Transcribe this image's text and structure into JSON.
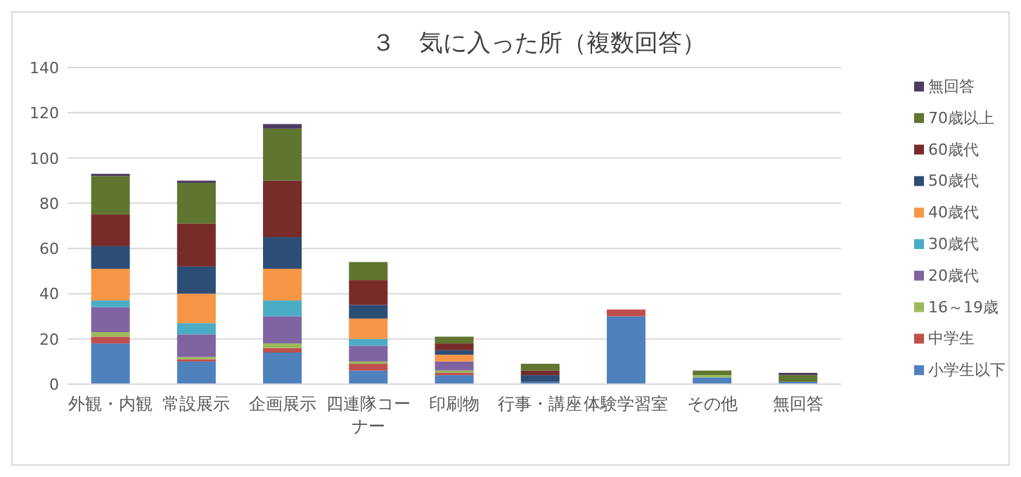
{
  "chart_data": {
    "type": "bar",
    "title": "３　気に入った所（複数回答）",
    "stacked": true,
    "legend": "right",
    "grid": "y",
    "categories": [
      "外観・内観",
      "常設展示",
      "企画展示",
      "四連隊コーナー",
      "印刷物",
      "行事・講座",
      "体験学習室",
      "その他",
      "無回答"
    ],
    "ylim": [
      0,
      140
    ],
    "yticks": [
      0,
      20,
      40,
      60,
      80,
      100,
      120,
      140
    ],
    "series": [
      {
        "name": "小学生以下",
        "color": "#4f81bd",
        "values": [
          18,
          10,
          14,
          6,
          4,
          1,
          30,
          3,
          1
        ]
      },
      {
        "name": "中学生",
        "color": "#c0504d",
        "values": [
          3,
          1,
          2,
          3,
          1,
          0,
          3,
          0,
          0
        ]
      },
      {
        "name": "16～19歳",
        "color": "#9bbb59",
        "values": [
          2,
          1,
          2,
          1,
          1,
          0,
          0,
          1,
          0
        ]
      },
      {
        "name": "20歳代",
        "color": "#8064a2",
        "values": [
          11,
          10,
          12,
          7,
          4,
          0,
          0,
          0,
          0
        ]
      },
      {
        "name": "30歳代",
        "color": "#4bacc6",
        "values": [
          3,
          5,
          7,
          3,
          0,
          0,
          0,
          0,
          0
        ]
      },
      {
        "name": "40歳代",
        "color": "#f79646",
        "values": [
          14,
          13,
          14,
          9,
          3,
          0,
          0,
          0,
          0
        ]
      },
      {
        "name": "50歳代",
        "color": "#2c4d75",
        "values": [
          10,
          12,
          14,
          6,
          2,
          3,
          0,
          0,
          0
        ]
      },
      {
        "name": "60歳代",
        "color": "#772c2a",
        "values": [
          14,
          19,
          25,
          11,
          3,
          2,
          0,
          0,
          0
        ]
      },
      {
        "name": "70歳以上",
        "color": "#5f7530",
        "values": [
          17,
          18,
          23,
          8,
          3,
          3,
          0,
          2,
          3
        ]
      },
      {
        "name": "無回答",
        "color": "#4d3b62",
        "values": [
          1,
          1,
          2,
          0,
          0,
          0,
          0,
          0,
          1
        ]
      }
    ]
  }
}
